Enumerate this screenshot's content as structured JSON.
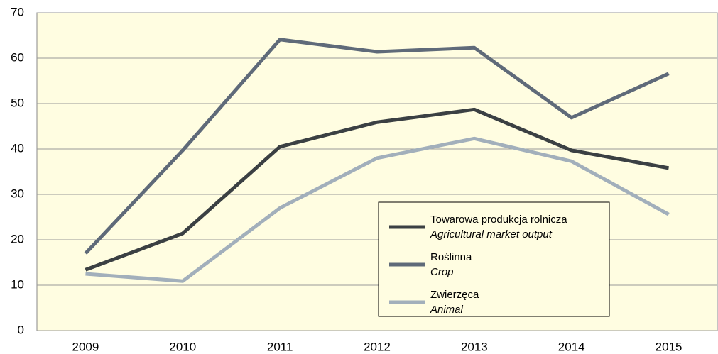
{
  "chart_data": {
    "type": "line",
    "categories": [
      "2009",
      "2010",
      "2011",
      "2012",
      "2013",
      "2014",
      "2015"
    ],
    "series": [
      {
        "name": "Towarowa produkcja rolnicza",
        "name_en": "Agricultural market output",
        "color": "#3b4043",
        "values": [
          13.4,
          21.4,
          40.5,
          45.9,
          48.7,
          39.7,
          35.8
        ]
      },
      {
        "name": "Roślinna",
        "name_en": "Crop",
        "color": "#5f6a79",
        "values": [
          17.0,
          39.7,
          64.1,
          61.4,
          62.3,
          46.9,
          56.6
        ]
      },
      {
        "name": "Zwierzęca",
        "name_en": "Animal",
        "color": "#a2afbb",
        "values": [
          12.5,
          10.9,
          27.0,
          38.0,
          42.3,
          37.3,
          25.6
        ]
      }
    ],
    "ylim": [
      0,
      70
    ],
    "yticks": [
      0,
      10,
      20,
      30,
      40,
      50,
      60,
      70
    ],
    "grid": true
  }
}
